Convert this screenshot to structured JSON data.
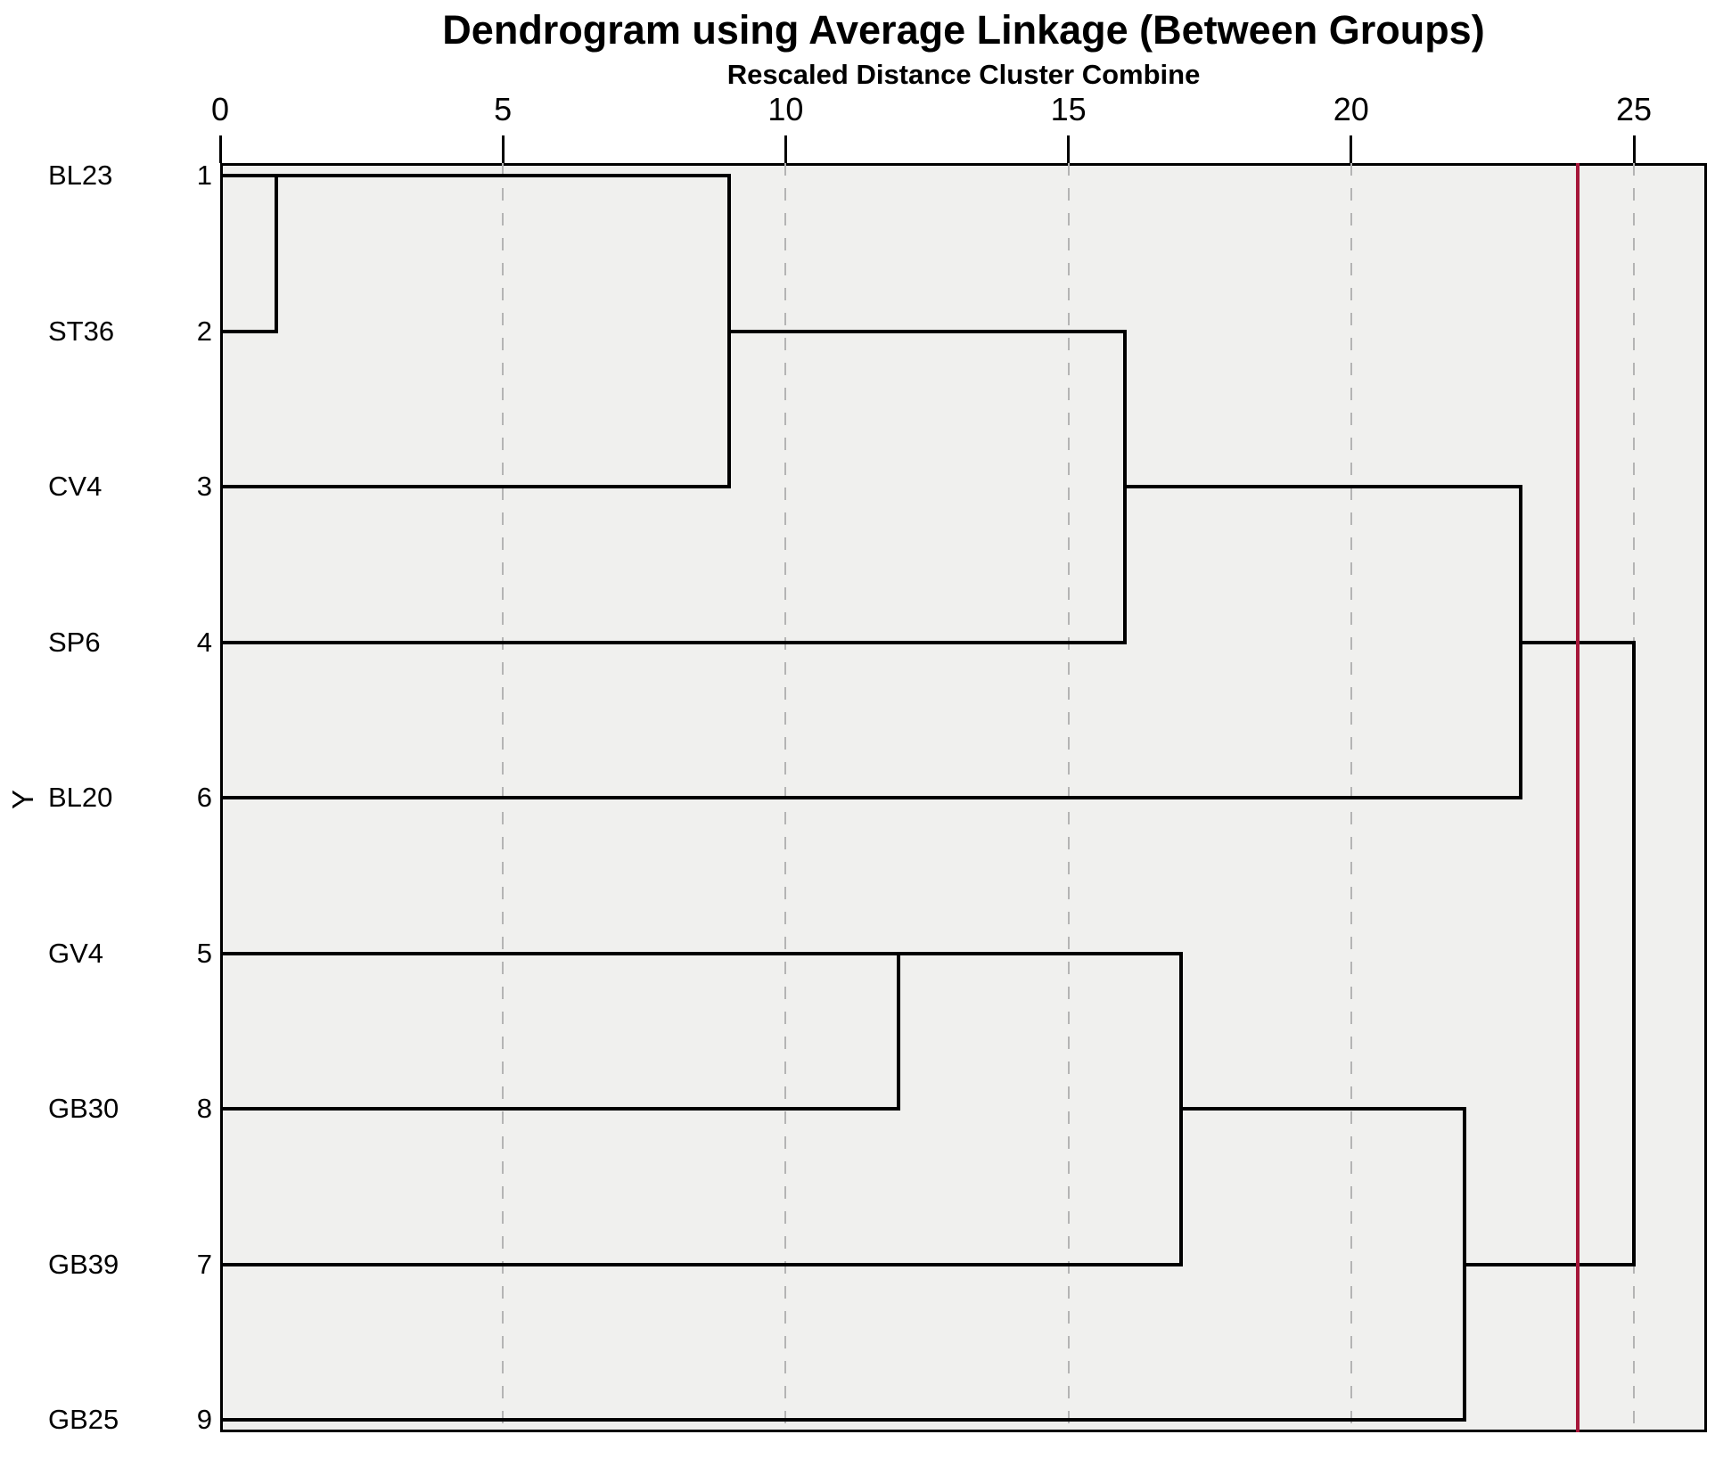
{
  "header": {
    "title": "Dendrogram using Average Linkage (Between Groups)",
    "subtitle": "Rescaled Distance Cluster Combine"
  },
  "axes": {
    "y_label": "Y",
    "x_ticks": [
      "0",
      "5",
      "10",
      "15",
      "20",
      "25"
    ]
  },
  "colors": {
    "plot_background": "#f0f0ee",
    "branch_line": "#000000",
    "gridline": "#b4b4b4",
    "cutoff_line": "#a6173a"
  },
  "chart_data": {
    "type": "dendrogram",
    "orientation": "horizontal",
    "title": "Dendrogram using Average Linkage (Between Groups)",
    "xlabel": "Rescaled Distance Cluster Combine",
    "ylabel": "Y",
    "x_axis": {
      "min": 0,
      "max": 25,
      "ticks": [
        0,
        5,
        10,
        15,
        20,
        25
      ],
      "gridlines_at": [
        5,
        10,
        15,
        20,
        25
      ],
      "grid_style": "dashed"
    },
    "cutoff_line_at": 24,
    "leaves": [
      {
        "label": "BL23",
        "case_number": "1"
      },
      {
        "label": "ST36",
        "case_number": "2"
      },
      {
        "label": "CV4",
        "case_number": "3"
      },
      {
        "label": "SP6",
        "case_number": "4"
      },
      {
        "label": "BL20",
        "case_number": "6"
      },
      {
        "label": "GV4",
        "case_number": "5"
      },
      {
        "label": "GB30",
        "case_number": "8"
      },
      {
        "label": "GB39",
        "case_number": "7"
      },
      {
        "label": "GB25",
        "case_number": "9"
      }
    ],
    "merges": [
      {
        "members": [
          "BL23",
          "ST36"
        ],
        "distance": 1
      },
      {
        "members": [
          "BL23+ST36",
          "CV4"
        ],
        "distance": 9
      },
      {
        "members": [
          "GV4",
          "GB30"
        ],
        "distance": 12
      },
      {
        "members": [
          "BL23+ST36+CV4",
          "SP6"
        ],
        "distance": 16
      },
      {
        "members": [
          "GV4+GB30",
          "GB39"
        ],
        "distance": 17
      },
      {
        "members": [
          "GV4+GB30+GB39",
          "GB25"
        ],
        "distance": 22
      },
      {
        "members": [
          "BL23+ST36+CV4+SP6",
          "BL20"
        ],
        "distance": 23
      },
      {
        "members": [
          "BL23+ST36+CV4+SP6+BL20",
          "GV4+GB30+GB39+GB25"
        ],
        "distance": 25
      }
    ],
    "segments": {
      "h": [
        {
          "row": 0,
          "d": [
            0,
            9
          ]
        },
        {
          "row": 1,
          "d": [
            0,
            1
          ]
        },
        {
          "row": 2,
          "d": [
            0,
            9
          ]
        },
        {
          "row": 1,
          "d": [
            9,
            16
          ]
        },
        {
          "row": 3,
          "d": [
            0,
            16
          ]
        },
        {
          "row": 2,
          "d": [
            16,
            23
          ]
        },
        {
          "row": 4,
          "d": [
            0,
            23
          ]
        },
        {
          "row": 3,
          "d": [
            23,
            25
          ]
        },
        {
          "row": 5,
          "d": [
            0,
            17
          ]
        },
        {
          "row": 6,
          "d": [
            0,
            12
          ]
        },
        {
          "row": 6,
          "d": [
            17,
            22
          ]
        },
        {
          "row": 7,
          "d": [
            0,
            17
          ]
        },
        {
          "row": 7,
          "d": [
            22,
            25
          ]
        },
        {
          "row": 8,
          "d": [
            0,
            22
          ]
        }
      ],
      "v": [
        {
          "d": 1,
          "rows": [
            0,
            1
          ]
        },
        {
          "d": 9,
          "rows": [
            0,
            2
          ]
        },
        {
          "d": 12,
          "rows": [
            5,
            6
          ]
        },
        {
          "d": 16,
          "rows": [
            1,
            3
          ]
        },
        {
          "d": 17,
          "rows": [
            5,
            7
          ]
        },
        {
          "d": 22,
          "rows": [
            6,
            8
          ]
        },
        {
          "d": 23,
          "rows": [
            2,
            4
          ]
        },
        {
          "d": 25,
          "rows": [
            3,
            7
          ]
        }
      ]
    }
  }
}
